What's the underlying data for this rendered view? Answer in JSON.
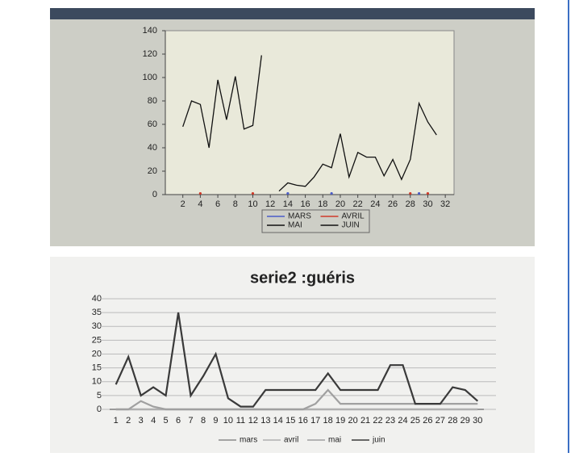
{
  "chart_data": [
    {
      "type": "line",
      "xlim": [
        0,
        33
      ],
      "xticks": [
        2,
        4,
        6,
        8,
        10,
        12,
        14,
        16,
        18,
        20,
        22,
        24,
        26,
        28,
        30,
        32
      ],
      "ylim": [
        0,
        140
      ],
      "yticks": [
        0,
        20,
        40,
        60,
        80,
        100,
        120,
        140
      ],
      "grid": false,
      "legend": "bottom",
      "series": [
        {
          "name": "MARS",
          "color": "#4a5cc8",
          "marker_only": true,
          "x": [
            14,
            19,
            29
          ],
          "values": [
            1,
            1,
            1
          ]
        },
        {
          "name": "AVRIL",
          "color": "#d03a2a",
          "marker_only": true,
          "x": [
            4,
            10,
            28,
            30
          ],
          "values": [
            1,
            1,
            1,
            1
          ]
        },
        {
          "name": "MAI",
          "color": "#111111",
          "x": [
            2,
            3,
            4,
            5,
            6,
            7,
            8,
            9,
            10,
            11
          ],
          "values": [
            58,
            80,
            77,
            40,
            98,
            64,
            101,
            56,
            59,
            119
          ]
        },
        {
          "name": "JUIN",
          "color": "#111111",
          "x": [
            13,
            14,
            15,
            16,
            17,
            18,
            19,
            20,
            21,
            22,
            23,
            24,
            25,
            26,
            27,
            28,
            29,
            30,
            31
          ],
          "values": [
            3,
            10,
            8,
            7,
            15,
            26,
            23,
            52,
            15,
            36,
            32,
            32,
            16,
            30,
            13,
            30,
            78,
            62,
            51
          ]
        }
      ]
    },
    {
      "type": "line",
      "title": "serie2 :guéris",
      "categories": [
        1,
        2,
        3,
        4,
        5,
        6,
        7,
        8,
        9,
        10,
        11,
        12,
        13,
        14,
        15,
        16,
        17,
        18,
        19,
        20,
        21,
        22,
        23,
        24,
        25,
        26,
        27,
        28,
        29,
        30
      ],
      "ylim": [
        0,
        40
      ],
      "yticks": [
        0,
        5,
        10,
        15,
        20,
        25,
        30,
        35,
        40
      ],
      "grid": true,
      "legend": "bottom",
      "series": [
        {
          "name": "mars",
          "color": "#8a8a8a",
          "values": [
            0,
            0,
            0,
            0,
            0,
            0,
            0,
            0,
            0,
            0,
            0,
            0,
            0,
            0,
            0,
            0,
            0,
            0,
            0,
            0,
            0,
            0,
            0,
            0,
            0,
            0,
            0,
            0,
            0,
            0
          ]
        },
        {
          "name": "avril",
          "color": "#b0b0b0",
          "values": [
            0,
            0,
            0,
            0,
            0,
            0,
            0,
            0,
            0,
            0,
            0,
            0,
            0,
            0,
            0,
            0,
            0,
            0,
            0,
            0,
            0,
            0,
            0,
            0,
            0,
            0,
            0,
            0,
            0,
            0
          ]
        },
        {
          "name": "mai",
          "color": "#a0a0a0",
          "values": [
            0,
            0,
            3,
            1,
            0,
            0,
            0,
            0,
            0,
            0,
            0,
            0,
            0,
            0,
            0,
            0,
            2,
            7,
            2,
            2,
            2,
            2,
            2,
            2,
            2,
            2,
            2,
            2,
            2,
            2
          ]
        },
        {
          "name": "juin",
          "color": "#3a3a3a",
          "values": [
            9,
            19,
            5,
            8,
            5,
            35,
            5,
            12,
            20,
            4,
            1,
            1,
            7,
            7,
            7,
            7,
            7,
            13,
            7,
            7,
            7,
            7,
            16,
            16,
            2,
            2,
            2,
            8,
            7,
            3
          ]
        }
      ]
    }
  ]
}
